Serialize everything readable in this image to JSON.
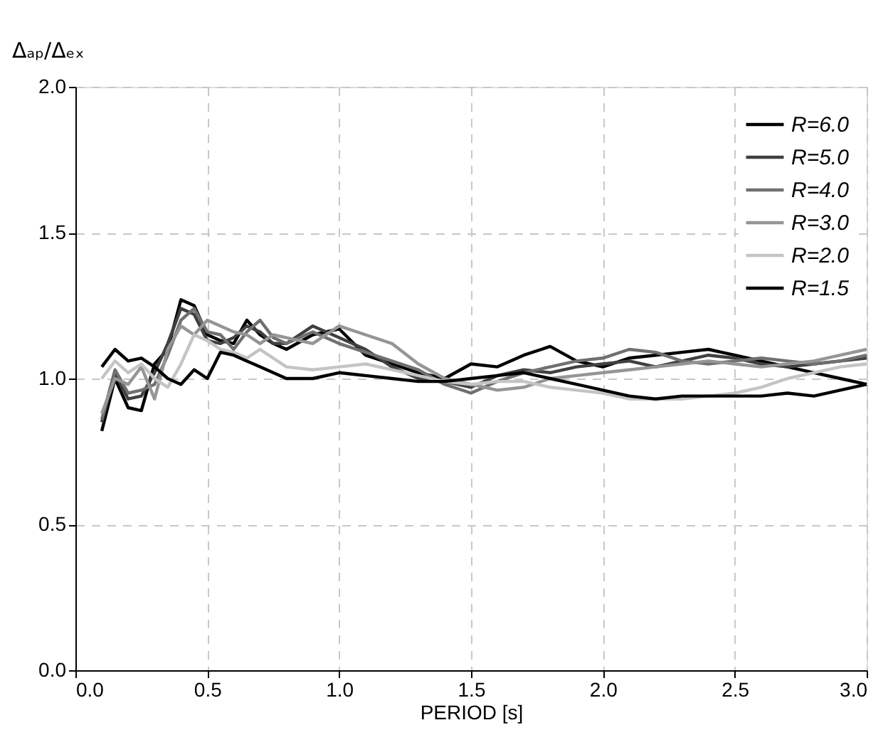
{
  "chart_data": {
    "type": "line",
    "xlabel": "PERIOD [s]",
    "ylabel": "Δₐₚ/Δₑₓ",
    "x": [
      0.1,
      0.15,
      0.2,
      0.25,
      0.3,
      0.35,
      0.4,
      0.45,
      0.5,
      0.55,
      0.6,
      0.65,
      0.7,
      0.75,
      0.8,
      0.9,
      1.0,
      1.1,
      1.2,
      1.3,
      1.4,
      1.5,
      1.6,
      1.7,
      1.8,
      1.9,
      2.0,
      2.1,
      2.2,
      2.3,
      2.4,
      2.5,
      2.6,
      2.7,
      2.8,
      2.9,
      3.0
    ],
    "series": [
      {
        "name": "R=6.0",
        "color": "#000000",
        "values": [
          0.82,
          1.0,
          0.9,
          0.89,
          1.05,
          1.1,
          1.27,
          1.25,
          1.15,
          1.13,
          1.12,
          1.2,
          1.15,
          1.12,
          1.1,
          1.15,
          1.17,
          1.08,
          1.05,
          1.02,
          1.0,
          1.05,
          1.04,
          1.08,
          1.11,
          1.06,
          1.04,
          1.07,
          1.08,
          1.09,
          1.1,
          1.08,
          1.06,
          1.04,
          1.02,
          1.0,
          0.98
        ]
      },
      {
        "name": "R=5.0",
        "color": "#404040",
        "values": [
          0.85,
          1.02,
          0.93,
          0.94,
          1.02,
          1.12,
          1.24,
          1.22,
          1.13,
          1.12,
          1.14,
          1.18,
          1.16,
          1.12,
          1.12,
          1.18,
          1.14,
          1.1,
          1.04,
          1.0,
          0.99,
          0.97,
          1.01,
          1.03,
          1.02,
          1.04,
          1.05,
          1.06,
          1.04,
          1.06,
          1.08,
          1.07,
          1.05,
          1.04,
          1.05,
          1.06,
          1.07
        ]
      },
      {
        "name": "R=4.0",
        "color": "#707070",
        "values": [
          0.86,
          1.03,
          0.95,
          0.96,
          0.98,
          1.08,
          1.2,
          1.24,
          1.16,
          1.15,
          1.1,
          1.16,
          1.2,
          1.14,
          1.12,
          1.16,
          1.12,
          1.09,
          1.06,
          1.03,
          0.98,
          0.95,
          0.99,
          1.02,
          1.04,
          1.06,
          1.07,
          1.1,
          1.09,
          1.06,
          1.05,
          1.06,
          1.07,
          1.06,
          1.05,
          1.06,
          1.08
        ]
      },
      {
        "name": "R=3.0",
        "color": "#959595",
        "values": [
          0.88,
          1.0,
          0.98,
          1.04,
          0.93,
          1.1,
          1.18,
          1.15,
          1.2,
          1.18,
          1.16,
          1.15,
          1.12,
          1.15,
          1.14,
          1.12,
          1.18,
          1.15,
          1.12,
          1.05,
          1.0,
          0.98,
          0.96,
          0.97,
          1.0,
          1.01,
          1.02,
          1.03,
          1.04,
          1.05,
          1.06,
          1.05,
          1.04,
          1.05,
          1.06,
          1.08,
          1.1
        ]
      },
      {
        "name": "R=2.0",
        "color": "#c4c4c4",
        "values": [
          1.0,
          1.06,
          1.02,
          1.05,
          1.0,
          0.97,
          1.05,
          1.15,
          1.13,
          1.1,
          1.09,
          1.07,
          1.1,
          1.07,
          1.04,
          1.03,
          1.04,
          1.05,
          1.03,
          1.01,
          0.99,
          0.98,
          0.99,
          0.99,
          0.97,
          0.96,
          0.95,
          0.93,
          0.93,
          0.93,
          0.94,
          0.95,
          0.97,
          1.0,
          1.02,
          1.04,
          1.05
        ]
      },
      {
        "name": "R=1.5",
        "color": "#000000",
        "values": [
          1.04,
          1.1,
          1.06,
          1.07,
          1.04,
          1.0,
          0.98,
          1.03,
          1.0,
          1.09,
          1.08,
          1.06,
          1.04,
          1.02,
          1.0,
          1.0,
          1.02,
          1.01,
          1.0,
          0.99,
          0.99,
          1.0,
          1.01,
          1.02,
          1.0,
          0.98,
          0.96,
          0.94,
          0.93,
          0.94,
          0.94,
          0.94,
          0.94,
          0.95,
          0.94,
          0.96,
          0.98
        ]
      }
    ],
    "xlim": [
      0,
      3
    ],
    "xticks": [
      {
        "value": 0,
        "label": "0.0"
      },
      0.5,
      {
        "value": 1,
        "label": "1.0"
      },
      1.5,
      {
        "value": 2,
        "label": "2.0"
      },
      2.5,
      {
        "value": 3,
        "label": "3.0"
      }
    ],
    "ylim": [
      0,
      2
    ],
    "yticks": [
      {
        "value": 0,
        "label": "0.0"
      },
      0.5,
      {
        "value": 1,
        "label": "1.0"
      },
      1.5,
      {
        "value": 2,
        "label": "2.0"
      }
    ],
    "grid": true,
    "legend": "top right",
    "line_style": "solid",
    "marker": "none"
  }
}
